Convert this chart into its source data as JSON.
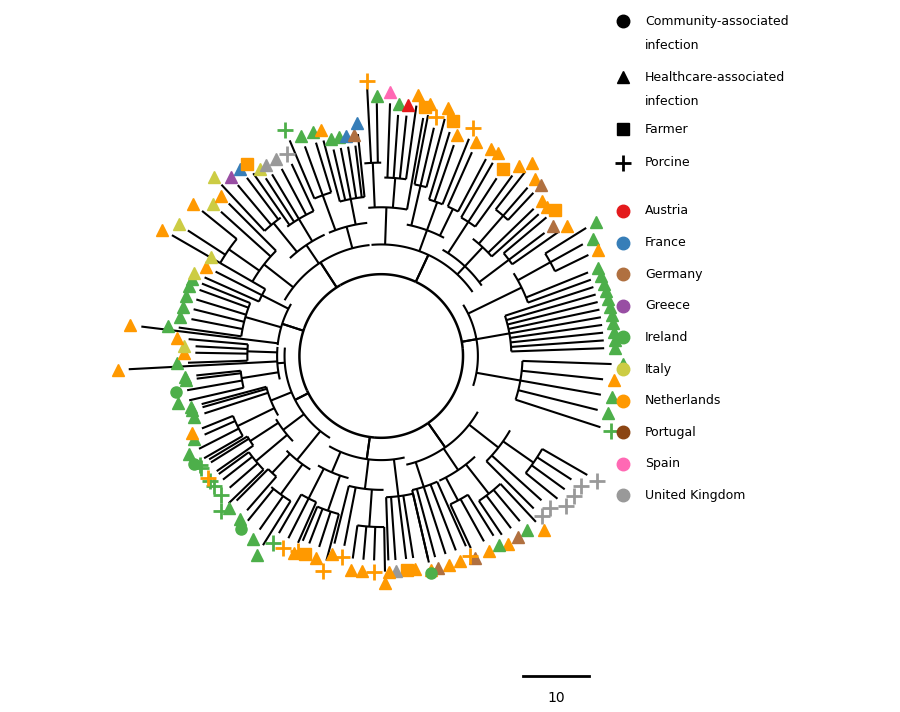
{
  "bg_color": "#ffffff",
  "tree_color": "#000000",
  "lw": 1.5,
  "marker_size": 9,
  "scalebar_label": "10",
  "country_colors": {
    "Austria": "#e41a1c",
    "France": "#377eb8",
    "Germany": "#b07040",
    "Greece": "#984ea3",
    "Ireland": "#4daf4a",
    "Italy": "#cccc44",
    "Netherlands": "#ff9900",
    "Portugal": "#8B4513",
    "Spain": "#ff69b4",
    "United Kingdom": "#999999"
  },
  "legend_items_country": [
    {
      "label": "Austria",
      "color": "#e41a1c"
    },
    {
      "label": "France",
      "color": "#377eb8"
    },
    {
      "label": "Germany",
      "color": "#b07040"
    },
    {
      "label": "Greece",
      "color": "#984ea3"
    },
    {
      "label": "Ireland",
      "color": "#4daf4a"
    },
    {
      "label": "Italy",
      "color": "#cccc44"
    },
    {
      "label": "Netherlands",
      "color": "#ff9900"
    },
    {
      "label": "Portugal",
      "color": "#8B4513"
    },
    {
      "label": "Spain",
      "color": "#ff69b4"
    },
    {
      "label": "United Kingdom",
      "color": "#999999"
    }
  ]
}
